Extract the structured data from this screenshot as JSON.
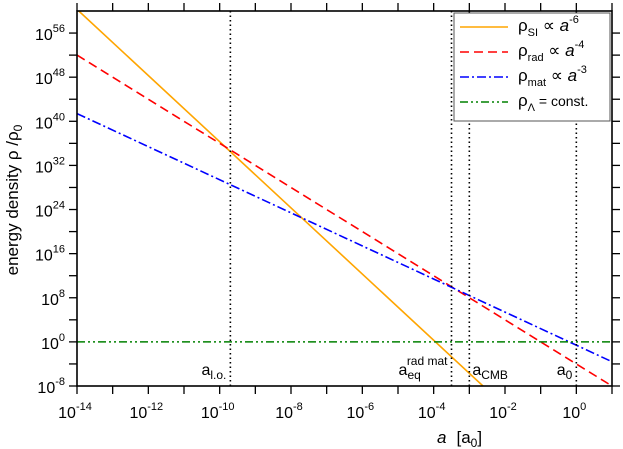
{
  "chart_data": {
    "type": "line",
    "xscale": "log",
    "yscale": "log",
    "xlim_log10": [
      -14,
      1
    ],
    "ylim_log10": [
      -8,
      60
    ],
    "xlabel": {
      "symbol": "a",
      "unit": "[a",
      "unit_sub": "0",
      "unit_close": "]"
    },
    "ylabel": {
      "text": "energy density  ρ /ρ",
      "sub": "0"
    },
    "xticks_log10": [
      -14,
      -12,
      -10,
      -8,
      -6,
      -4,
      -2,
      0
    ],
    "xtick_labels": [
      {
        "base": "10",
        "exp": "-14"
      },
      {
        "base": "10",
        "exp": "-12"
      },
      {
        "base": "10",
        "exp": "-10"
      },
      {
        "base": "10",
        "exp": "-8"
      },
      {
        "base": "10",
        "exp": "-6"
      },
      {
        "base": "10",
        "exp": "-4"
      },
      {
        "base": "10",
        "exp": "-2"
      },
      {
        "base": "10",
        "exp": "0"
      }
    ],
    "yticks_log10": [
      -8,
      0,
      8,
      16,
      24,
      32,
      40,
      48,
      56
    ],
    "ytick_labels": [
      {
        "base": "10",
        "exp": "-8"
      },
      {
        "base": "10",
        "exp": "0"
      },
      {
        "base": "10",
        "exp": "8"
      },
      {
        "base": "10",
        "exp": "16"
      },
      {
        "base": "10",
        "exp": "24"
      },
      {
        "base": "10",
        "exp": "32"
      },
      {
        "base": "10",
        "exp": "40"
      },
      {
        "base": "10",
        "exp": "48"
      },
      {
        "base": "10",
        "exp": "56"
      }
    ],
    "grid": false,
    "legend_position": "top-right",
    "series": [
      {
        "name": "rho_SI",
        "label": "ρ",
        "sub": "SI",
        "rel": " ∝ ",
        "var": "a",
        "exp": "-6",
        "power": -6,
        "log10_coefficient": -23.7,
        "color": "#ffa500",
        "dash": ""
      },
      {
        "name": "rho_rad",
        "label": "ρ",
        "sub": "rad",
        "rel": " ∝ ",
        "var": "a",
        "exp": "-4",
        "power": -4,
        "log10_coefficient": -4.0,
        "color": "#ff0000",
        "dash": "9 5"
      },
      {
        "name": "rho_mat",
        "label": "ρ",
        "sub": "mat",
        "rel": " ∝ ",
        "var": "a",
        "exp": "-3",
        "power": -3,
        "log10_coefficient": -0.6,
        "color": "#0000ff",
        "dash": "9 3 2 3"
      },
      {
        "name": "rho_lambda",
        "label": "ρ",
        "sub": "Λ",
        "rel": " = const.",
        "var": "",
        "exp": "",
        "power": 0,
        "log10_coefficient": 0,
        "color": "#008000",
        "dash": "8 3 2 3 2 3"
      }
    ],
    "markers": [
      {
        "name": "a-lo",
        "x_log10": -9.7,
        "label": "a",
        "sub": "l.o.",
        "sup": ""
      },
      {
        "name": "a-eq",
        "x_log10": -3.5,
        "label": "a",
        "sub": "eq",
        "sup": "rad mat"
      },
      {
        "name": "a-cmb",
        "x_log10": -3.0,
        "label": "a",
        "sub": "CMB",
        "sup": ""
      },
      {
        "name": "a-0",
        "x_log10": 0,
        "label": "a",
        "sub": "0",
        "sup": ""
      }
    ]
  }
}
